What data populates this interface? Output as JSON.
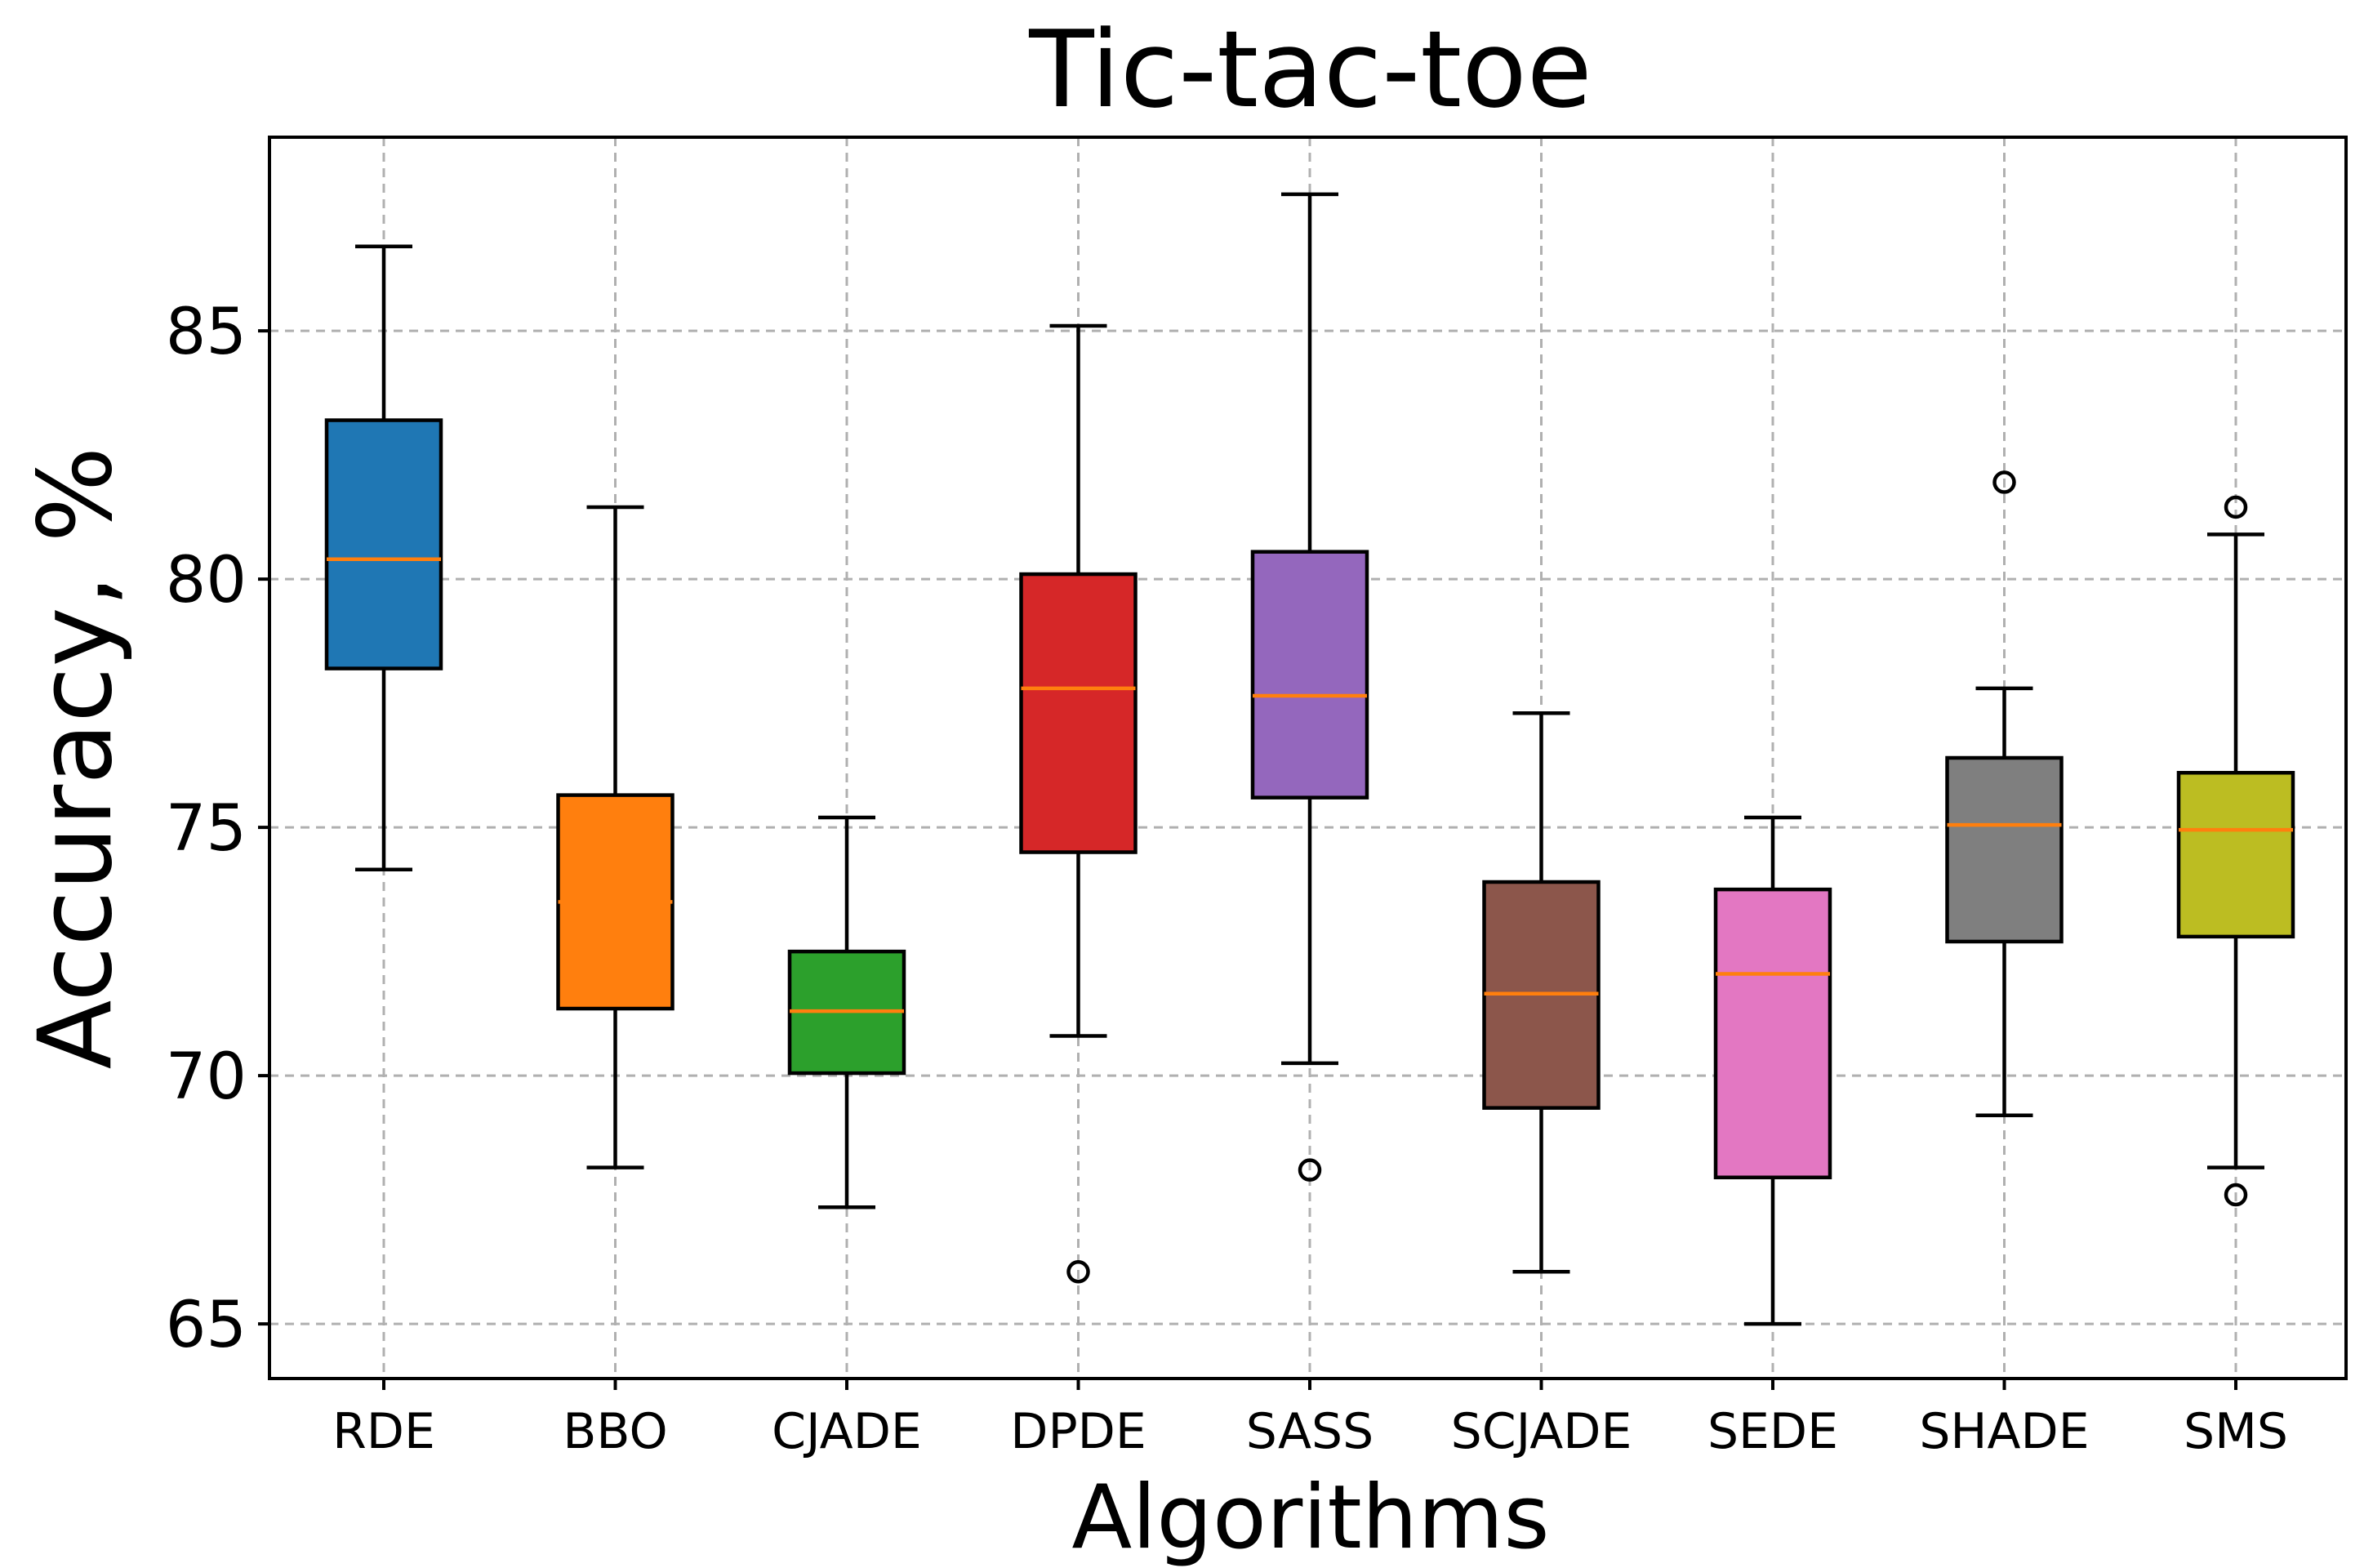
{
  "chart_data": {
    "type": "boxplot",
    "title": "Tic-tac-toe",
    "xlabel": "Algorithms",
    "ylabel": "Accuracy, %",
    "ylim": [
      63.9,
      88.9
    ],
    "yticks": [
      65,
      70,
      75,
      80,
      85
    ],
    "grid": true,
    "categories": [
      "RDE",
      "BBO",
      "CJADE",
      "DPDE",
      "SASS",
      "SCJADE",
      "SEDE",
      "SHADE",
      "SMS"
    ],
    "boxes": [
      {
        "name": "RDE",
        "color": "#1f77b4",
        "whisker_low": 74.15,
        "q1": 78.2,
        "median": 80.4,
        "q3": 83.2,
        "whisker_high": 86.7,
        "fliers": []
      },
      {
        "name": "BBO",
        "color": "#ff7f0e",
        "whisker_low": 68.15,
        "q1": 71.35,
        "median": 73.5,
        "q3": 75.65,
        "whisker_high": 81.45,
        "fliers": []
      },
      {
        "name": "CJADE",
        "color": "#2ca02c",
        "whisker_low": 67.35,
        "q1": 70.05,
        "median": 71.3,
        "q3": 72.5,
        "whisker_high": 75.2,
        "fliers": []
      },
      {
        "name": "DPDE",
        "color": "#d62728",
        "whisker_low": 70.8,
        "q1": 74.5,
        "median": 77.8,
        "q3": 80.1,
        "whisker_high": 85.1,
        "fliers": [
          66.05
        ]
      },
      {
        "name": "SASS",
        "color": "#9467bd",
        "whisker_low": 70.25,
        "q1": 75.6,
        "median": 77.65,
        "q3": 80.55,
        "whisker_high": 87.75,
        "fliers": [
          68.1
        ]
      },
      {
        "name": "SCJADE",
        "color": "#8c564b",
        "whisker_low": 66.05,
        "q1": 69.35,
        "median": 71.65,
        "q3": 73.9,
        "whisker_high": 77.3,
        "fliers": []
      },
      {
        "name": "SEDE",
        "color": "#e377c2",
        "whisker_low": 65.0,
        "q1": 67.95,
        "median": 72.05,
        "q3": 73.75,
        "whisker_high": 75.2,
        "fliers": []
      },
      {
        "name": "SHADE",
        "color": "#7f7f7f",
        "whisker_low": 69.2,
        "q1": 72.7,
        "median": 75.05,
        "q3": 76.4,
        "whisker_high": 77.8,
        "fliers": [
          81.95
        ]
      },
      {
        "name": "SMS",
        "color": "#bcbd22",
        "whisker_low": 68.15,
        "q1": 72.8,
        "median": 74.95,
        "q3": 76.1,
        "whisker_high": 80.9,
        "fliers": [
          81.45,
          67.6
        ]
      }
    ]
  }
}
